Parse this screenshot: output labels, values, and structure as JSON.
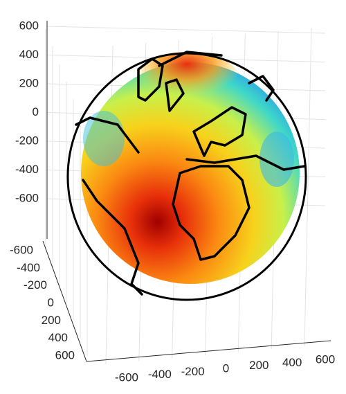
{
  "chart_data": {
    "type": "surface3d",
    "zticks": [
      600,
      400,
      200,
      0,
      -200,
      -400,
      -600
    ],
    "zlim": [
      -600,
      600
    ],
    "yticks": [
      -600,
      -400,
      -200,
      0,
      200,
      400,
      600
    ],
    "ylim": [
      -600,
      600
    ],
    "xticks": [
      -600,
      -400,
      -200,
      0,
      200,
      400,
      600
    ],
    "xlim": [
      -600,
      600
    ],
    "grid": true
  }
}
